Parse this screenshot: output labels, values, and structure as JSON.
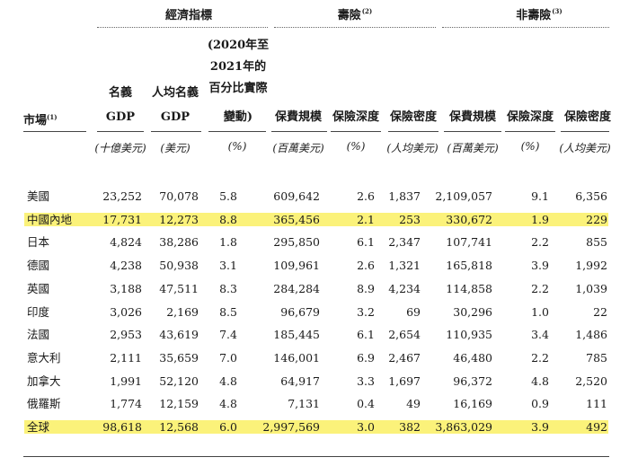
{
  "group_headers": {
    "economic": "經濟指標",
    "life": "壽險",
    "life_note": "(2)",
    "nonlife": "非壽險",
    "nonlife_note": "(3)"
  },
  "columns": {
    "market": {
      "label": "市場",
      "note": "(1)"
    },
    "gdp": {
      "line1": "名義",
      "line2": "GDP",
      "unit": "(十億美元)"
    },
    "gdp_per_capita": {
      "line1": "人均名義",
      "line2": "GDP",
      "unit": "(美元)"
    },
    "change": {
      "line1": "(2020年至",
      "line2": "2021年的",
      "line3": "百分比實際",
      "line4": "變動)",
      "unit": "(%)"
    },
    "life_premium": {
      "label": "保費規模",
      "unit": "(百萬美元)"
    },
    "life_depth": {
      "label": "保險深度",
      "unit": "(%)"
    },
    "life_density": {
      "label": "保險密度",
      "unit": "(人均美元)"
    },
    "nonlife_premium": {
      "label": "保費規模",
      "unit": "(百萬美元)"
    },
    "nonlife_depth": {
      "label": "保險深度",
      "unit": "(%)"
    },
    "nonlife_density": {
      "label": "保險密度",
      "unit": "(人均美元)"
    }
  },
  "rows": [
    {
      "market": "美國",
      "gdp": "23,252",
      "gdp_pc": "70,078",
      "change": "5.8",
      "life_prem": "609,642",
      "life_depth": "2.6",
      "life_dens": "1,837",
      "nl_prem": "2,109,057",
      "nl_depth": "9.1",
      "nl_dens": "6,356",
      "highlight": false
    },
    {
      "market": "中國內地",
      "gdp": "17,731",
      "gdp_pc": "12,273",
      "change": "8.8",
      "life_prem": "365,456",
      "life_depth": "2.1",
      "life_dens": "253",
      "nl_prem": "330,672",
      "nl_depth": "1.9",
      "nl_dens": "229",
      "highlight": true
    },
    {
      "market": "日本",
      "gdp": "4,824",
      "gdp_pc": "38,286",
      "change": "1.8",
      "life_prem": "295,850",
      "life_depth": "6.1",
      "life_dens": "2,347",
      "nl_prem": "107,741",
      "nl_depth": "2.2",
      "nl_dens": "855",
      "highlight": false
    },
    {
      "market": "德國",
      "gdp": "4,238",
      "gdp_pc": "50,938",
      "change": "3.1",
      "life_prem": "109,961",
      "life_depth": "2.6",
      "life_dens": "1,321",
      "nl_prem": "165,818",
      "nl_depth": "3.9",
      "nl_dens": "1,992",
      "highlight": false
    },
    {
      "market": "英國",
      "gdp": "3,188",
      "gdp_pc": "47,511",
      "change": "8.3",
      "life_prem": "284,284",
      "life_depth": "8.9",
      "life_dens": "4,234",
      "nl_prem": "114,858",
      "nl_depth": "2.2",
      "nl_dens": "1,039",
      "highlight": false
    },
    {
      "market": "印度",
      "gdp": "3,026",
      "gdp_pc": "2,169",
      "change": "8.5",
      "life_prem": "96,679",
      "life_depth": "3.2",
      "life_dens": "69",
      "nl_prem": "30,296",
      "nl_depth": "1.0",
      "nl_dens": "22",
      "highlight": false
    },
    {
      "market": "法國",
      "gdp": "2,953",
      "gdp_pc": "43,619",
      "change": "7.4",
      "life_prem": "185,445",
      "life_depth": "6.1",
      "life_dens": "2,654",
      "nl_prem": "110,935",
      "nl_depth": "3.4",
      "nl_dens": "1,486",
      "highlight": false
    },
    {
      "market": "意大利",
      "gdp": "2,111",
      "gdp_pc": "35,659",
      "change": "7.0",
      "life_prem": "146,001",
      "life_depth": "6.9",
      "life_dens": "2,467",
      "nl_prem": "46,480",
      "nl_depth": "2.2",
      "nl_dens": "785",
      "highlight": false
    },
    {
      "market": "加拿大",
      "gdp": "1,991",
      "gdp_pc": "52,120",
      "change": "4.8",
      "life_prem": "64,917",
      "life_depth": "3.3",
      "life_dens": "1,697",
      "nl_prem": "96,372",
      "nl_depth": "4.8",
      "nl_dens": "2,520",
      "highlight": false
    },
    {
      "market": "俄羅斯",
      "gdp": "1,774",
      "gdp_pc": "12,159",
      "change": "4.8",
      "life_prem": "7,131",
      "life_depth": "0.4",
      "life_dens": "49",
      "nl_prem": "16,169",
      "nl_depth": "0.9",
      "nl_dens": "111",
      "highlight": false
    },
    {
      "market": "全球",
      "gdp": "98,618",
      "gdp_pc": "12,568",
      "change": "6.0",
      "life_prem": "2,997,569",
      "life_depth": "3.0",
      "life_dens": "382",
      "nl_prem": "3,863,029",
      "nl_depth": "3.9",
      "nl_dens": "492",
      "highlight": true
    }
  ],
  "colors": {
    "highlight": "#fbf27a",
    "rule": "#444444"
  }
}
